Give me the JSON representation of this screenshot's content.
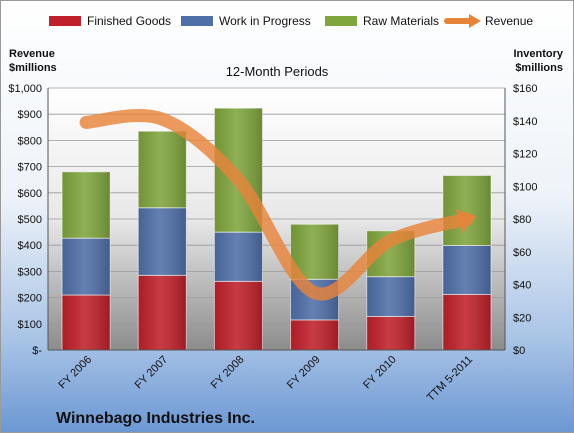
{
  "chart_data": {
    "type": "bar",
    "subtitle": "12-Month Periods",
    "company": "Winnebago Industries Inc.",
    "left_axis_title": [
      "Revenue",
      "$millions"
    ],
    "right_axis_title": [
      "Inventory",
      "$millions"
    ],
    "categories": [
      "FY 2006",
      "FY 2007",
      "FY 2008",
      "FY 2009",
      "FY 2010",
      "TTM 5-2011"
    ],
    "stacked": true,
    "left_ylim": [
      0,
      1000
    ],
    "left_ticks": [
      "$-",
      "$100",
      "$200",
      "$300",
      "$400",
      "$500",
      "$600",
      "$700",
      "$800",
      "$900",
      "$1,000"
    ],
    "right_ylim": [
      0,
      160
    ],
    "right_ticks": [
      "$0",
      "$20",
      "$40",
      "$60",
      "$80",
      "$100",
      "$120",
      "$140",
      "$160"
    ],
    "series": [
      {
        "name": "Finished Goods",
        "axis": "left",
        "color": "#c0202a",
        "values": [
          210,
          285,
          262,
          115,
          128,
          212
        ]
      },
      {
        "name": "Work in Progress",
        "axis": "left",
        "color": "#4f6fa8",
        "values": [
          217,
          258,
          188,
          155,
          152,
          187
        ]
      },
      {
        "name": "Raw Materials",
        "axis": "left",
        "color": "#7fa53d",
        "values": [
          253,
          292,
          473,
          210,
          175,
          267
        ]
      },
      {
        "name": "Revenue",
        "axis": "right",
        "type": "line",
        "color": "#e8843a",
        "values": [
          139,
          141,
          104,
          35,
          67,
          80
        ]
      }
    ],
    "grid": true,
    "legend_position": "top"
  }
}
